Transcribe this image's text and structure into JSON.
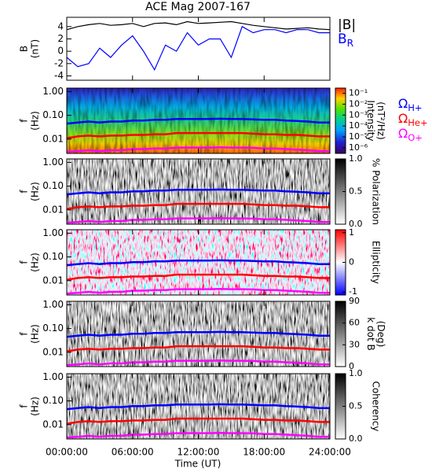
{
  "chart_data": [
    {
      "type": "line",
      "title": "ACE Mag 2007-167",
      "ylabel": [
        "B",
        "(nT)"
      ],
      "x": [
        0,
        1,
        2,
        3,
        4,
        5,
        6,
        7,
        8,
        9,
        10,
        11,
        12,
        13,
        14,
        15,
        16,
        17,
        18,
        19,
        20,
        21,
        22,
        23,
        24
      ],
      "xlim": [
        0,
        24
      ],
      "xticks": [
        {
          "value": 0,
          "label": "00:00:00"
        },
        {
          "value": 6,
          "label": "06:00:00"
        },
        {
          "value": 12,
          "label": "12:00:00"
        },
        {
          "value": 18,
          "label": "18:00:00"
        },
        {
          "value": 24,
          "label": "24:00:00"
        }
      ],
      "xlabel": "Time (UT)",
      "ylim": [
        -4.7,
        5.5
      ],
      "yticks": [
        -4,
        -2,
        0,
        2,
        4
      ],
      "series": [
        {
          "name": "|B|",
          "color": "#000000",
          "values": [
            3.5,
            4,
            4.3,
            4.5,
            4.2,
            4.3,
            4.5,
            4,
            4.5,
            4.6,
            4.3,
            4.8,
            4.5,
            4.6,
            4.7,
            4.8,
            4.5,
            4.2,
            4,
            3.8,
            3.6,
            3.7,
            3.8,
            3.6,
            3.5
          ]
        },
        {
          "name": "B",
          "name_sub": "R",
          "color": "#0000ff",
          "values": [
            -1,
            -2.5,
            -2,
            0.5,
            -1,
            1,
            2.5,
            0,
            -3,
            1,
            0,
            3,
            1,
            2,
            2,
            -1,
            4,
            3,
            3.5,
            3.5,
            3,
            3.5,
            3.5,
            3,
            3
          ]
        }
      ]
    },
    {
      "type": "spectrogram",
      "ylabel": [
        "f",
        "(Hz)"
      ],
      "log_y": true,
      "ylim": [
        0.0025,
        1.4
      ],
      "yticks": [
        {
          "value": 1,
          "label": "1.00"
        },
        {
          "value": 0.1,
          "label": "0.10"
        },
        0.01
      ],
      "colormap": "rainbow",
      "colorbar_label": [
        "Intensity",
        "(nT²/Hz)"
      ],
      "colorbar_log": true,
      "clim": [
        3e-07,
        0.3
      ],
      "colorbar_ticks": [
        {
          "value": 0.1,
          "label": "10⁻¹"
        },
        {
          "value": 0.01,
          "label": "10⁻²"
        },
        {
          "value": 0.001,
          "label": "10⁻³"
        },
        {
          "value": 0.0001,
          "label": "10⁻⁴"
        },
        {
          "value": 1e-05,
          "label": "10⁻⁵"
        },
        {
          "value": 1e-06,
          "label": "10⁻⁶"
        }
      ],
      "x": [
        0,
        1,
        2,
        3,
        4,
        5,
        6,
        7,
        8,
        9,
        10,
        11,
        12,
        13,
        14,
        15,
        16,
        17,
        18,
        19,
        20,
        21,
        22,
        23,
        24
      ],
      "series": [
        {
          "name": "Ω",
          "name_sub": "H+",
          "color": "#0000ff",
          "values": [
            0.045,
            0.05,
            0.055,
            0.05,
            0.055,
            0.055,
            0.06,
            0.06,
            0.065,
            0.065,
            0.07,
            0.07,
            0.07,
            0.07,
            0.072,
            0.07,
            0.07,
            0.068,
            0.065,
            0.065,
            0.06,
            0.058,
            0.055,
            0.05,
            0.05
          ]
        },
        {
          "name": "Ω",
          "name_sub": "He+",
          "color": "#ff0000",
          "values": [
            0.011,
            0.013,
            0.014,
            0.013,
            0.014,
            0.014,
            0.015,
            0.015,
            0.016,
            0.016,
            0.018,
            0.018,
            0.018,
            0.018,
            0.018,
            0.018,
            0.018,
            0.017,
            0.016,
            0.016,
            0.015,
            0.015,
            0.014,
            0.013,
            0.013
          ]
        },
        {
          "name": "Ω",
          "name_sub": "O+",
          "color": "#ff00ff",
          "values": [
            0.0029,
            0.0031,
            0.0034,
            0.0031,
            0.0034,
            0.0034,
            0.0038,
            0.0038,
            0.004,
            0.004,
            0.0044,
            0.0044,
            0.0044,
            0.0044,
            0.0045,
            0.0044,
            0.0044,
            0.0043,
            0.004,
            0.004,
            0.0038,
            0.0036,
            0.0034,
            0.0031,
            0.0031
          ]
        }
      ]
    },
    {
      "type": "spectrogram",
      "ylabel": [
        "f",
        "(Hz)"
      ],
      "log_y": true,
      "ylim": [
        0.0025,
        1.4
      ],
      "yticks": [
        {
          "value": 1,
          "label": "1.00"
        },
        {
          "value": 0.1,
          "label": "0.10"
        },
        0.01
      ],
      "colormap": "gray",
      "colorbar_label": [
        "% Polarization"
      ],
      "clim": [
        0,
        1
      ],
      "colorbar_ticks": [
        {
          "value": 0,
          "label": "0.0"
        },
        0.5,
        {
          "value": 1,
          "label": "1.0"
        }
      ]
    },
    {
      "type": "spectrogram",
      "ylabel": [
        "f",
        "(Hz)"
      ],
      "log_y": true,
      "ylim": [
        0.0025,
        1.4
      ],
      "yticks": [
        {
          "value": 1,
          "label": "1.00"
        },
        {
          "value": 0.1,
          "label": "0.10"
        },
        0.01
      ],
      "colormap": "bluered",
      "colorbar_label": [
        "Ellipticity"
      ],
      "clim": [
        -1.1,
        1.1
      ],
      "colorbar_ticks": [
        -1,
        0,
        1
      ]
    },
    {
      "type": "spectrogram",
      "ylabel": [
        "f",
        "(Hz)"
      ],
      "log_y": true,
      "ylim": [
        0.0025,
        1.4
      ],
      "yticks": [
        {
          "value": 1,
          "label": "1.00"
        },
        {
          "value": 0.1,
          "label": "0.10"
        },
        0.01
      ],
      "colormap": "gray",
      "colorbar_label": [
        "k dot B",
        "(Deg)"
      ],
      "clim": [
        0,
        90
      ],
      "colorbar_ticks": [
        0,
        30,
        60,
        90
      ]
    },
    {
      "type": "spectrogram",
      "ylabel": [
        "f",
        "(Hz)"
      ],
      "log_y": true,
      "ylim": [
        0.0025,
        1.4
      ],
      "yticks": [
        {
          "value": 1,
          "label": "1.00"
        },
        {
          "value": 0.1,
          "label": "0.10"
        },
        0.01
      ],
      "colormap": "gray",
      "colorbar_label": [
        "Coherency"
      ],
      "clim": [
        0,
        1
      ],
      "colorbar_ticks": [
        {
          "value": 0,
          "label": "0.0"
        },
        0.5,
        {
          "value": 1,
          "label": "1.0"
        }
      ]
    }
  ]
}
